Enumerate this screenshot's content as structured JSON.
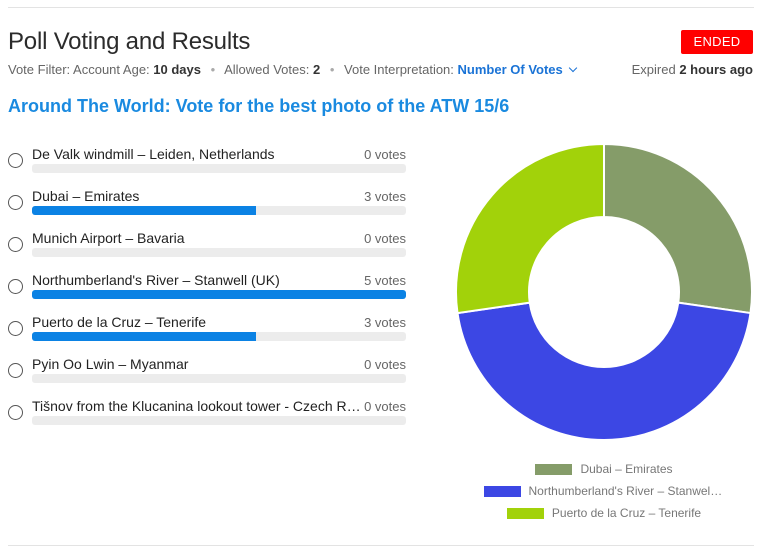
{
  "header": {
    "title": "Poll Voting and Results",
    "status_badge": "ENDED",
    "vote_filter_label": "Vote Filter:",
    "account_age_label": "Account Age:",
    "account_age_value": "10 days",
    "allowed_votes_label": "Allowed Votes:",
    "allowed_votes_value": "2",
    "interpretation_label": "Vote Interpretation:",
    "interpretation_value": "Number Of Votes",
    "expired_label": "Expired",
    "expired_value": "2 hours ago"
  },
  "poll": {
    "question": "Around The World: Vote for the best photo of the ATW 15/6",
    "max_votes": 5,
    "options": [
      {
        "label": "De Valk windmill – Leiden, Netherlands",
        "votes_text": "0 votes",
        "votes": 0
      },
      {
        "label": "Dubai – Emirates",
        "votes_text": "3 votes",
        "votes": 3
      },
      {
        "label": "Munich Airport – Bavaria",
        "votes_text": "0 votes",
        "votes": 0
      },
      {
        "label": "Northumberland's River – Stanwell (UK)",
        "votes_text": "5 votes",
        "votes": 5
      },
      {
        "label": "Puerto de la Cruz – Tenerife",
        "votes_text": "3 votes",
        "votes": 3
      },
      {
        "label": "Pyin Oo Lwin – Myanmar",
        "votes_text": "0 votes",
        "votes": 0
      },
      {
        "label": "Tišnov from the Klucanina lookout tower - Czech Re...",
        "votes_text": "0 votes",
        "votes": 0
      }
    ]
  },
  "chart_data": {
    "type": "pie",
    "variant": "donut",
    "legend_position": "bottom",
    "slices": [
      {
        "label": "Dubai – Emirates",
        "legend_text": "Dubai – Emirates",
        "value": 3,
        "color": "#859c69"
      },
      {
        "label": "Northumberland's River – Stanwell (UK)",
        "legend_text": "Northumberland's River – Stanwell ...",
        "value": 5,
        "color": "#3c47e4"
      },
      {
        "label": "Puerto de la Cruz – Tenerife",
        "legend_text": "Puerto de la Cruz – Tenerife",
        "value": 3,
        "color": "#a2d20a"
      }
    ]
  },
  "colors": {
    "accent": "#1a8ae0",
    "bar_fill": "#0b82e4",
    "status_badge": "#ff0000"
  }
}
